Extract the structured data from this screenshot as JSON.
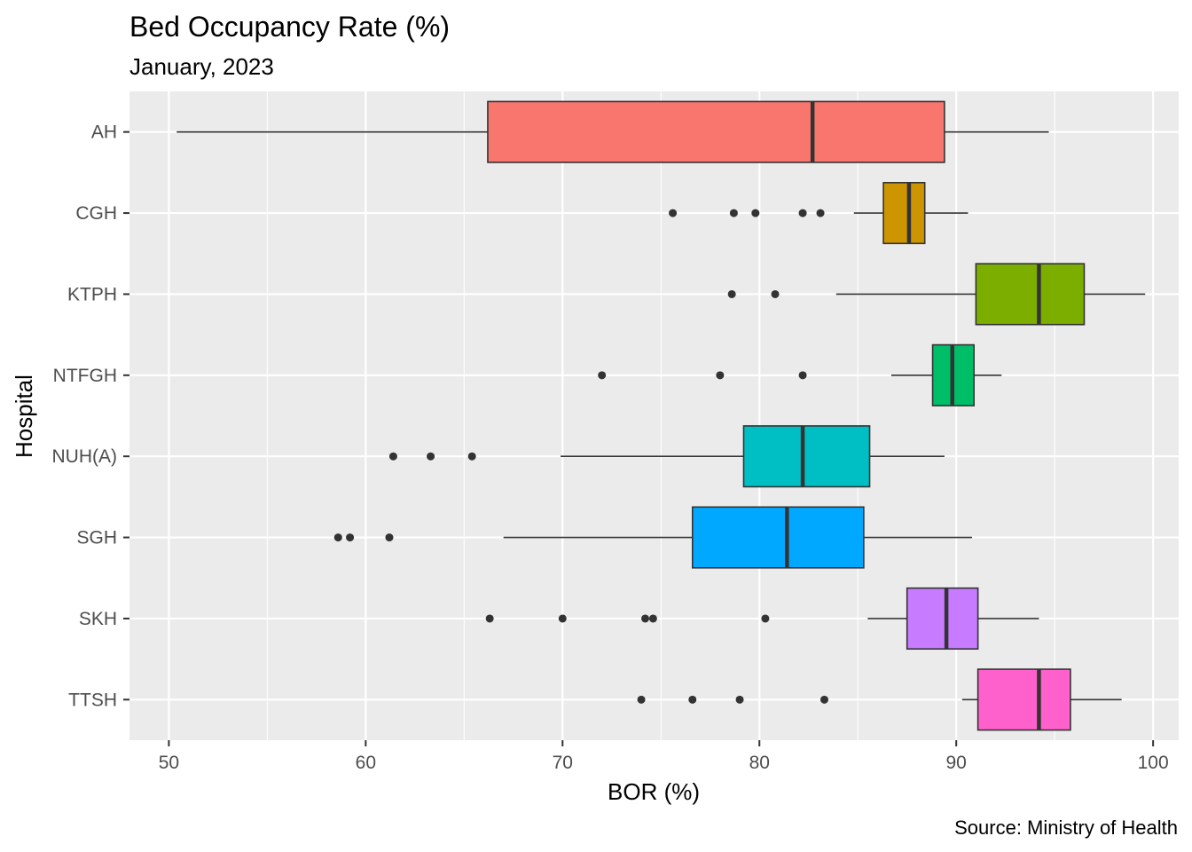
{
  "chart_data": {
    "type": "boxplot",
    "title": "Bed Occupancy Rate (%)",
    "subtitle": "January, 2023",
    "caption": "Source: Ministry of Health",
    "xlabel": "BOR (%)",
    "ylabel": "Hospital",
    "xlim": [
      48,
      101.3
    ],
    "xticks": [
      50,
      60,
      70,
      80,
      90,
      100
    ],
    "grid": true,
    "legend": "none",
    "series": [
      {
        "category": "AH",
        "color": "#F8766D",
        "whisker_low": 50.4,
        "q1": 66.2,
        "median": 82.7,
        "q3": 89.4,
        "whisker_high": 94.7,
        "outliers": []
      },
      {
        "category": "CGH",
        "color": "#CD9600",
        "whisker_low": 84.8,
        "q1": 86.3,
        "median": 87.6,
        "q3": 88.4,
        "whisker_high": 90.6,
        "outliers": [
          75.6,
          78.7,
          79.8,
          82.2,
          83.1
        ]
      },
      {
        "category": "KTPH",
        "color": "#7CAE00",
        "whisker_low": 83.9,
        "q1": 91.0,
        "median": 94.2,
        "q3": 96.5,
        "whisker_high": 99.6,
        "outliers": [
          78.6,
          80.8
        ]
      },
      {
        "category": "NTFGH",
        "color": "#00BE67",
        "whisker_low": 86.7,
        "q1": 88.8,
        "median": 89.8,
        "q3": 90.9,
        "whisker_high": 92.3,
        "outliers": [
          72.0,
          78.0,
          82.2
        ]
      },
      {
        "category": "NUH(A)",
        "color": "#00BFC4",
        "whisker_low": 69.9,
        "q1": 79.2,
        "median": 82.2,
        "q3": 85.6,
        "whisker_high": 89.4,
        "outliers": [
          61.4,
          63.3,
          65.4
        ]
      },
      {
        "category": "SGH",
        "color": "#00A9FF",
        "whisker_low": 67.0,
        "q1": 76.6,
        "median": 81.4,
        "q3": 85.3,
        "whisker_high": 90.8,
        "outliers": [
          58.6,
          59.2,
          61.2
        ]
      },
      {
        "category": "SKH",
        "color": "#C77CFF",
        "whisker_low": 85.5,
        "q1": 87.5,
        "median": 89.5,
        "q3": 91.1,
        "whisker_high": 94.2,
        "outliers": [
          66.3,
          70.0,
          74.2,
          74.6,
          80.3
        ]
      },
      {
        "category": "TTSH",
        "color": "#FF61CC",
        "whisker_low": 90.3,
        "q1": 91.1,
        "median": 94.2,
        "q3": 95.8,
        "whisker_high": 98.4,
        "outliers": [
          74.0,
          76.6,
          79.0,
          83.3
        ]
      }
    ]
  }
}
